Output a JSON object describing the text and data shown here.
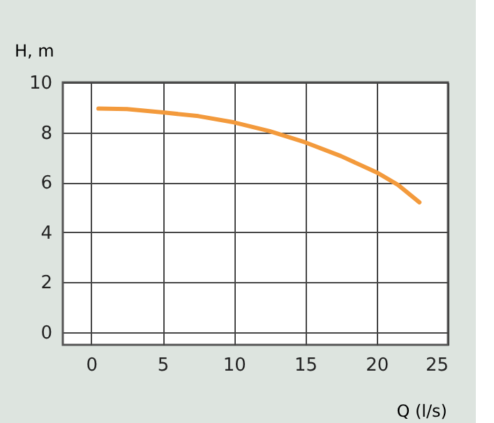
{
  "chart_data": {
    "type": "line",
    "xlabel": "Q (l/s)",
    "ylabel": "H, m",
    "x": [
      0.5,
      2.5,
      5,
      7.5,
      10,
      12.5,
      15,
      17.5,
      20,
      21.5,
      23
    ],
    "series": [
      {
        "color": "#f39a3c",
        "values": [
          8.95,
          8.93,
          8.8,
          8.65,
          8.4,
          8.05,
          7.6,
          7.05,
          6.4,
          5.9,
          5.2
        ]
      }
    ],
    "xlim": [
      -2,
      25
    ],
    "xticks": [
      0,
      5,
      10,
      15,
      20,
      25
    ],
    "ylim": [
      -0.5,
      10
    ],
    "yticks": [
      0,
      2,
      4,
      6,
      8,
      10
    ],
    "grid": true,
    "marker": "none",
    "line_style": "solid"
  }
}
